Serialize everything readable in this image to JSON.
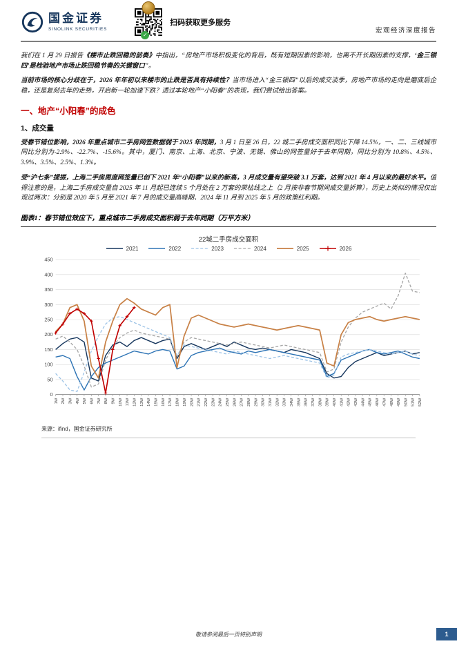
{
  "header": {
    "brand_cn": "国金证券",
    "brand_en": "SINOLINK SECURITIES",
    "qr_caption": "扫码获取更多服务",
    "report_type": "宏观经济深度报告"
  },
  "body": {
    "paragraphs": [
      {
        "segments": [
          {
            "text": "我们在 1 月 29 日报告",
            "bold": false
          },
          {
            "text": "《楼市止跌回稳的前奏》",
            "bold": true
          },
          {
            "text": "中指出，“房地产市场积极变化的背后，既有短期因素的影响，也离不开长期因素的支撑，",
            "bold": false
          },
          {
            "text": "‘金三银四’是检验地产市场止跌回稳节奏的关键窗口",
            "bold": true
          },
          {
            "text": "”。",
            "bold": false
          }
        ]
      },
      {
        "segments": [
          {
            "text": "当前市场的核心分歧在于，2026 年年初以来楼市的止跌是否具有持续性？",
            "bold": true
          },
          {
            "text": "当市场进入“金三银四”以后的成交淡季，房地产市场的走向是磨底后企稳，还是复刻去年的走势，开启新一轮加速下跌？透过本轮地产“小阳春”的表现，我们尝试给出答案。",
            "bold": false
          }
        ]
      },
      {
        "segments": [
          {
            "text": "受春节错位影响，2026 年重点城市二手房网签数据弱于 2025 年同期，",
            "bold": true
          },
          {
            "text": "3 月 1 日至 26 日，22 城二手房成交面积同比下降 14.5%，一、二、三线城市同比分别为-2.9%、-22.7%、-15.6%。其中，厦门、南京、上海、北京、宁波、无锡、佛山的网签量好于去年同期，同比分别为 10.8%、4.5%、3.9%、3.5%、2.5%、1.3%。",
            "bold": false
          }
        ]
      },
      {
        "segments": [
          {
            "text": "受“沪七条”提振，上海二手房周度网签量已创下 2021 年“小阳春”以来的新高，3 月成交量有望突破 3.1 万套，达到 2021 年 4 月以来的最好水平。",
            "bold": true
          },
          {
            "text": "值得注意的是，上海二手房成交量自 2025 年 11 月起已连续 5 个月处在 2 万套的荣枯线之上（2 月按非春节期间成交量折算），历史上类似的情况仅出现过两次：分别是 2020 年 5 月至 2021 年 7 月的成交量高峰期、2024 年 11 月到 2025 年 5 月的政策红利期。",
            "bold": false
          }
        ]
      }
    ],
    "section1_title": "一、地产“小阳春”的成色",
    "sub1_title": "1、成交量",
    "figure_caption": "图表1：春节错位效应下，重点城市二手房成交面积弱于去年同期（万平方米）",
    "source": "来源：ifind，国金证券研究所"
  },
  "footer": {
    "disclaimer": "敬请参阅最后一页特别声明",
    "page_number": "1"
  },
  "chart_data": {
    "type": "line",
    "title": "22城二手房成交面积",
    "unit": "万平方米",
    "ylim": [
      0,
      450
    ],
    "ytick_step": 50,
    "grid": true,
    "legend_position": "top",
    "categories": [
      "1W",
      "2W",
      "3W",
      "4W",
      "5W",
      "6W",
      "7W",
      "8W",
      "9W",
      "10W",
      "11W",
      "12W",
      "13W",
      "14W",
      "15W",
      "16W",
      "17W",
      "18W",
      "19W",
      "20W",
      "21W",
      "22W",
      "23W",
      "24W",
      "25W",
      "26W",
      "27W",
      "28W",
      "29W",
      "30W",
      "31W",
      "32W",
      "33W",
      "34W",
      "35W",
      "36W",
      "37W",
      "38W",
      "39W",
      "40W",
      "41W",
      "42W",
      "43W",
      "44W",
      "45W",
      "46W",
      "47W",
      "48W",
      "49W",
      "50W",
      "51W",
      "52W"
    ],
    "series": [
      {
        "name": "2021",
        "color": "#17375e",
        "dash": false,
        "marker": false,
        "width": 1.4,
        "values": [
          150,
          170,
          185,
          190,
          175,
          55,
          45,
          130,
          165,
          175,
          160,
          180,
          190,
          180,
          170,
          180,
          185,
          120,
          160,
          170,
          160,
          150,
          160,
          170,
          160,
          175,
          165,
          155,
          150,
          155,
          150,
          145,
          140,
          150,
          145,
          140,
          130,
          120,
          70,
          55,
          60,
          90,
          110,
          120,
          130,
          140,
          130,
          135,
          140,
          145,
          135,
          140
        ]
      },
      {
        "name": "2022",
        "color": "#2e74b5",
        "dash": false,
        "marker": false,
        "width": 1.4,
        "values": [
          125,
          130,
          120,
          60,
          15,
          60,
          90,
          105,
          115,
          125,
          135,
          145,
          140,
          135,
          145,
          150,
          145,
          85,
          95,
          130,
          140,
          145,
          150,
          155,
          145,
          140,
          135,
          145,
          140,
          145,
          150,
          145,
          140,
          135,
          130,
          125,
          120,
          115,
          60,
          70,
          115,
          125,
          135,
          145,
          150,
          140,
          135,
          140,
          145,
          135,
          125,
          120
        ]
      },
      {
        "name": "2023",
        "color": "#9dc3e6",
        "dash": true,
        "marker": false,
        "width": 1.3,
        "values": [
          70,
          45,
          15,
          10,
          75,
          145,
          195,
          235,
          255,
          260,
          250,
          240,
          230,
          220,
          210,
          200,
          190,
          130,
          165,
          160,
          155,
          150,
          145,
          140,
          135,
          145,
          140,
          135,
          130,
          125,
          120,
          125,
          130,
          125,
          120,
          115,
          110,
          105,
          55,
          65,
          125,
          135,
          140,
          145,
          150,
          145,
          140,
          135,
          140,
          145,
          135,
          130
        ]
      },
      {
        "name": "2024",
        "color": "#a6a6a6",
        "dash": true,
        "marker": false,
        "width": 1.3,
        "values": [
          185,
          195,
          175,
          150,
          95,
          25,
          35,
          115,
          160,
          190,
          205,
          215,
          205,
          200,
          195,
          190,
          185,
          125,
          175,
          190,
          185,
          180,
          175,
          170,
          165,
          170,
          175,
          170,
          165,
          160,
          155,
          160,
          165,
          160,
          155,
          150,
          145,
          140,
          75,
          85,
          175,
          225,
          255,
          275,
          285,
          295,
          305,
          285,
          330,
          405,
          345,
          340
        ]
      },
      {
        "name": "2025",
        "color": "#c88146",
        "dash": false,
        "marker": false,
        "width": 1.7,
        "values": [
          210,
          235,
          290,
          300,
          245,
          95,
          55,
          175,
          245,
          300,
          320,
          305,
          285,
          275,
          265,
          290,
          300,
          90,
          195,
          255,
          265,
          255,
          245,
          235,
          230,
          225,
          230,
          235,
          230,
          225,
          220,
          215,
          220,
          225,
          230,
          225,
          220,
          215,
          105,
          95,
          200,
          240,
          250,
          255,
          260,
          250,
          245,
          250,
          255,
          260,
          255,
          250
        ]
      },
      {
        "name": "2026",
        "color": "#c00000",
        "dash": false,
        "marker": true,
        "width": 1.6,
        "values": [
          205,
          235,
          270,
          285,
          270,
          245,
          120,
          5,
          150,
          230,
          260,
          290
        ]
      }
    ]
  }
}
